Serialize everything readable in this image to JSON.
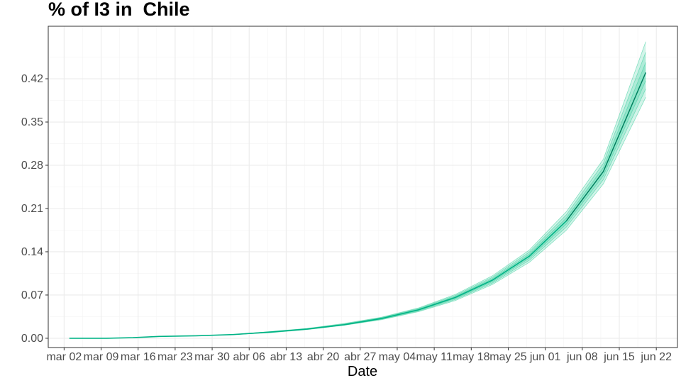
{
  "chart_data": {
    "type": "line",
    "title": "% of I3 in  Chile",
    "xlabel": "Date",
    "ylabel": "",
    "x_tick_labels": [
      "mar 02",
      "mar 09",
      "mar 16",
      "mar 23",
      "mar 30",
      "abr 06",
      "abr 13",
      "abr 20",
      "abr 27",
      "may 04",
      "may 11",
      "may 18",
      "may 25",
      "jun 01",
      "jun 08",
      "jun 15",
      "jun 22"
    ],
    "y_tick_labels": [
      "0.00",
      "0.07",
      "0.14",
      "0.21",
      "0.28",
      "0.35",
      "0.42"
    ],
    "y_ticks": [
      0,
      0.07,
      0.14,
      0.21,
      0.28,
      0.35,
      0.42
    ],
    "xlim": [
      "2020-02-28",
      "2020-06-26"
    ],
    "ylim": [
      -0.015,
      0.505
    ],
    "grid": true,
    "legend": "none",
    "line_color": "#00b386",
    "band_color": "#33cc99",
    "series": [
      {
        "x": [
          "2020-03-03",
          "2020-03-10",
          "2020-03-15",
          "2020-03-20",
          "2020-03-27",
          "2020-04-03",
          "2020-04-10",
          "2020-04-17",
          "2020-04-24",
          "2020-05-01",
          "2020-05-08",
          "2020-05-15",
          "2020-05-22",
          "2020-05-29",
          "2020-06-05",
          "2020-06-12",
          "2020-06-20"
        ],
        "y": [
          0.0,
          0.0,
          0.001,
          0.003,
          0.004,
          0.006,
          0.01,
          0.015,
          0.022,
          0.032,
          0.046,
          0.066,
          0.094,
          0.133,
          0.19,
          0.27,
          0.43
        ],
        "lower": [
          0.0,
          0.0,
          0.001,
          0.003,
          0.004,
          0.006,
          0.009,
          0.014,
          0.021,
          0.03,
          0.043,
          0.061,
          0.087,
          0.123,
          0.175,
          0.25,
          0.39
        ],
        "upper": [
          0.0,
          0.0,
          0.001,
          0.003,
          0.004,
          0.006,
          0.011,
          0.016,
          0.024,
          0.034,
          0.049,
          0.071,
          0.101,
          0.143,
          0.205,
          0.29,
          0.48
        ]
      }
    ]
  }
}
